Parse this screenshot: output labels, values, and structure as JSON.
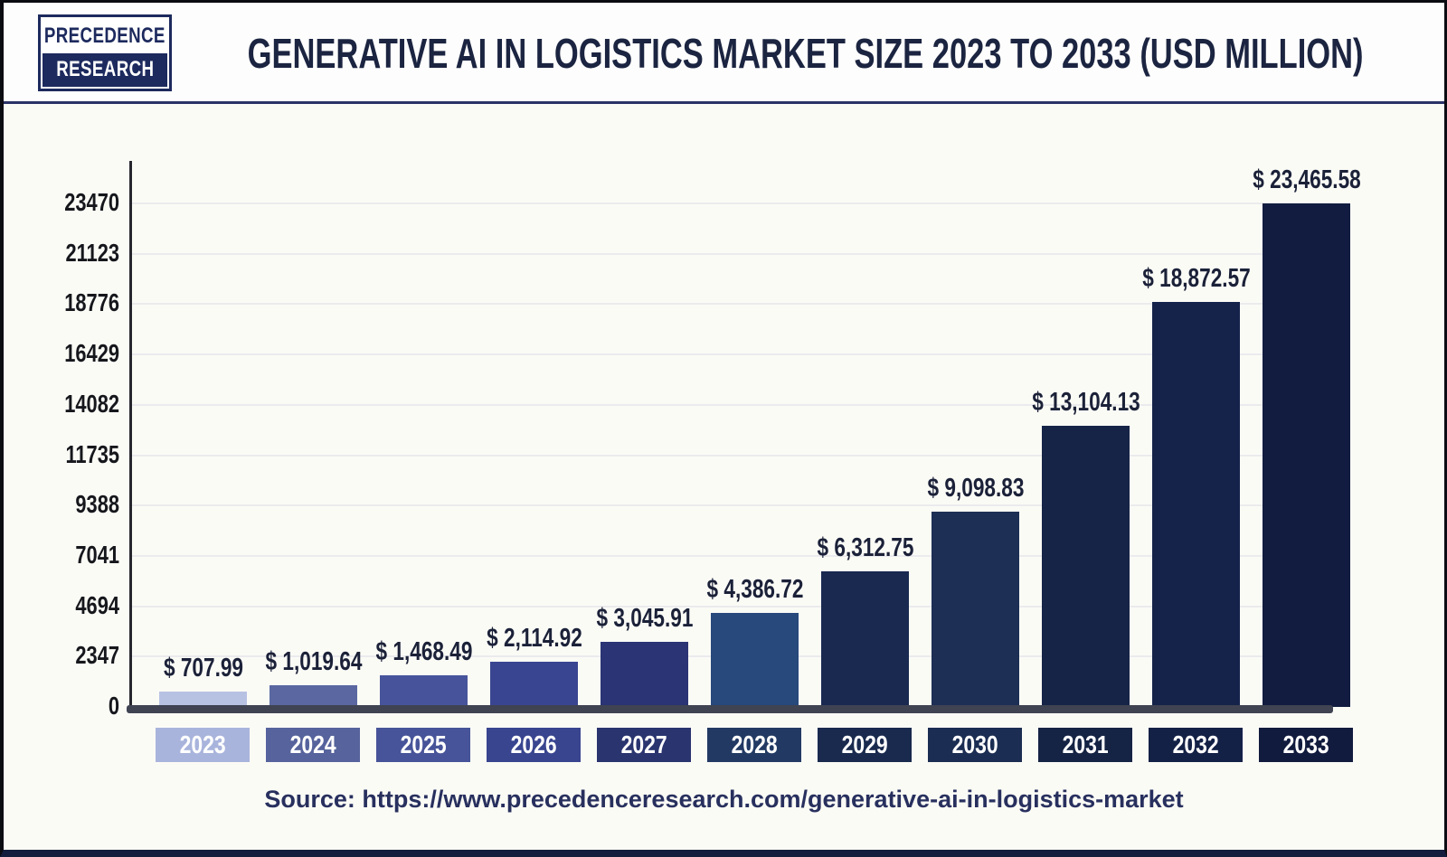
{
  "header": {
    "logo": {
      "line1": "PRECEDENCE",
      "line2": "RESEARCH"
    },
    "title": "GENERATIVE AI IN LOGISTICS MARKET SIZE 2023 TO 2033 (USD MILLION)"
  },
  "chart_data": {
    "type": "bar",
    "title": "Generative AI in Logistics Market Size 2023 to 2033 (USD Million)",
    "unit": "USD Million",
    "xlabel": "",
    "ylabel": "",
    "categories": [
      "2023",
      "2024",
      "2025",
      "2026",
      "2027",
      "2028",
      "2029",
      "2030",
      "2031",
      "2032",
      "2033"
    ],
    "values": [
      707.99,
      1019.64,
      1468.49,
      2114.92,
      3045.91,
      4386.72,
      6312.75,
      9098.83,
      13104.13,
      18872.57,
      23465.58
    ],
    "value_labels": [
      "$ 707.99",
      "$ 1,019.64",
      "$ 1,468.49",
      "$ 2,114.92",
      "$ 3,045.91",
      "$ 4,386.72",
      "$ 6,312.75",
      "$ 9,098.83",
      "$ 13,104.13",
      "$ 18,872.57",
      "$ 23,465.58"
    ],
    "bar_colors": [
      "#b7c2e3",
      "#5a67a0",
      "#47549b",
      "#3a4591",
      "#2b3474",
      "#27497c",
      "#1a2950",
      "#1d2f55",
      "#162447",
      "#15224a",
      "#121c40"
    ],
    "label_box_colors": [
      "#a9b4dc",
      "#56639c",
      "#475499",
      "#39458f",
      "#2a346f",
      "#223a63",
      "#192a4e",
      "#1b2d52",
      "#152344",
      "#142147",
      "#111b3e"
    ],
    "y_ticks": [
      0,
      2347,
      4694,
      7041,
      9388,
      11735,
      14082,
      16429,
      18776,
      21123,
      23470
    ],
    "ylim": [
      0,
      25450
    ],
    "grid": "horizontal",
    "legend": "none",
    "colors": {
      "value_label": "#1b2138",
      "tick_label": "#15171c",
      "axis_line": "#3f4352",
      "gridline": "#ebebee",
      "title": "#1b2440",
      "brand_navy": "#1d2a5e"
    }
  },
  "footer": {
    "source": "Source: https://www.precedenceresearch.com/generative-ai-in-logistics-market"
  }
}
